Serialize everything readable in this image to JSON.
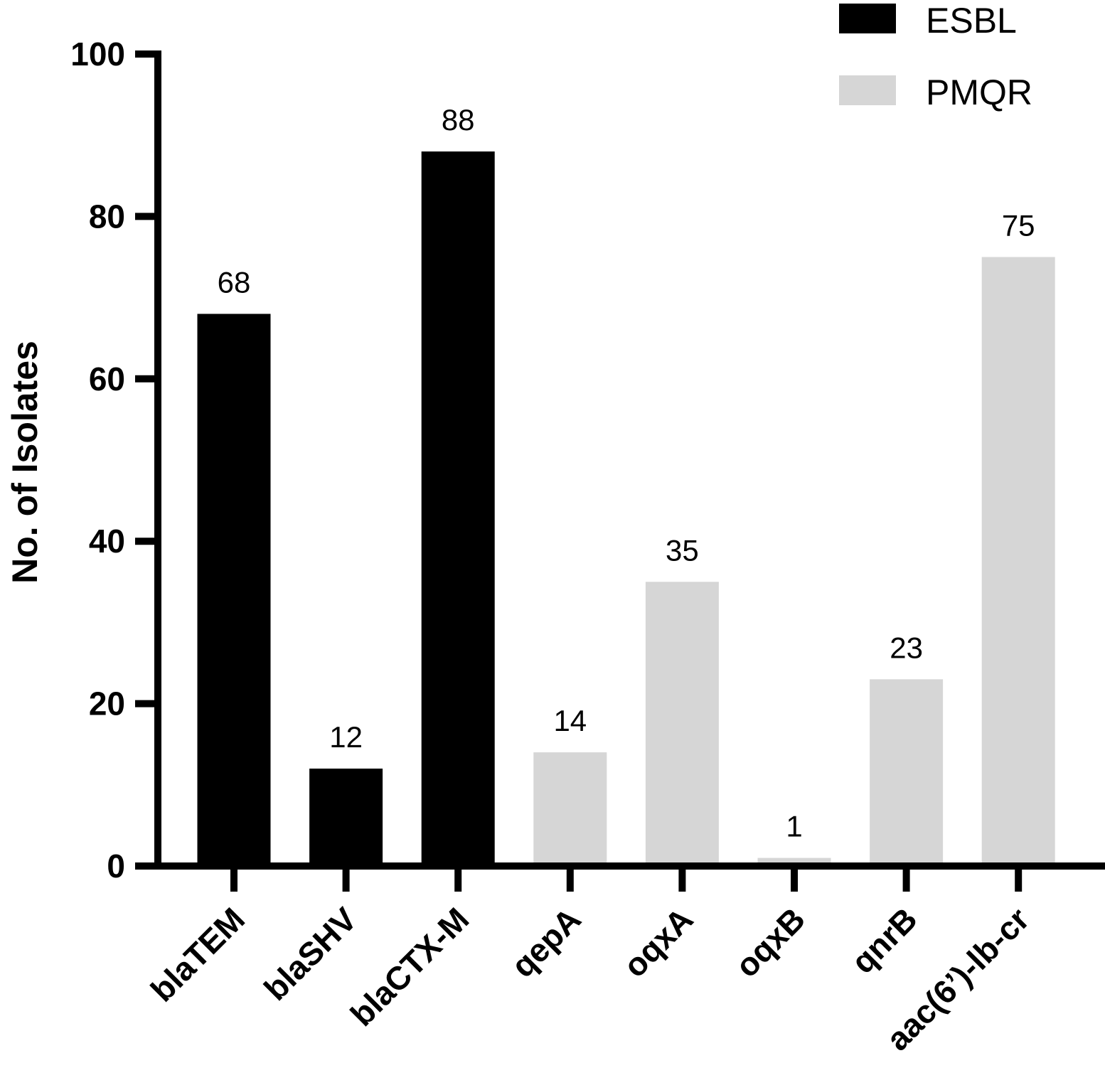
{
  "chart_data": {
    "type": "bar",
    "ylabel": "No. of Isolates",
    "ylim": [
      0,
      100
    ],
    "yticks": [
      0,
      20,
      40,
      60,
      80,
      100
    ],
    "categories": [
      "blaTEM",
      "blaSHV",
      "blaCTX-M",
      "qepA",
      "oqxA",
      "oqxB",
      "qnrB",
      "aac(6’)-lb-cr"
    ],
    "values": [
      68,
      12,
      88,
      14,
      35,
      1,
      23,
      75
    ],
    "groups": [
      "ESBL",
      "ESBL",
      "ESBL",
      "PMQR",
      "PMQR",
      "PMQR",
      "PMQR",
      "PMQR"
    ],
    "data_labels": [
      "68",
      "12",
      "88",
      "14",
      "35",
      "1",
      "23",
      "75"
    ],
    "legend": {
      "placement": "top-right",
      "items": [
        {
          "name": "ESBL",
          "color": "#000000"
        },
        {
          "name": "PMQR",
          "color": "#d6d6d6"
        }
      ]
    },
    "grid": false
  }
}
